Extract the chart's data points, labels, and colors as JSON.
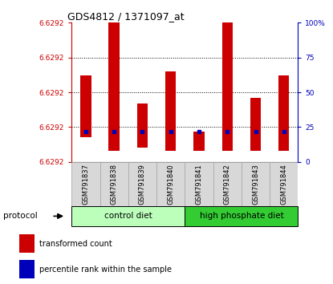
{
  "title": "GDS4812 / 1371097_at",
  "samples": [
    "GSM791837",
    "GSM791838",
    "GSM791839",
    "GSM791840",
    "GSM791841",
    "GSM791842",
    "GSM791843",
    "GSM791844"
  ],
  "bar_tops_pct": [
    62,
    100,
    42,
    65,
    22,
    100,
    46,
    62
  ],
  "bar_bottoms_pct": [
    18,
    8,
    10,
    8,
    8,
    8,
    8,
    8
  ],
  "percentile_pts": [
    22,
    22,
    22,
    22,
    22,
    22,
    22,
    22
  ],
  "yticks_right": [
    0,
    25,
    50,
    75,
    100
  ],
  "ytick_labels_left": [
    "6.6292",
    "6.6292",
    "6.6292",
    "6.6292",
    "6.6292"
  ],
  "hlines": [
    25,
    50,
    75
  ],
  "groups": [
    {
      "label": "control diet",
      "start": 0,
      "end": 4,
      "color": "#C8FFC8"
    },
    {
      "label": "high phosphate diet",
      "start": 4,
      "end": 8,
      "color": "#44DD44"
    }
  ],
  "bar_color": "#CC0000",
  "dot_color": "#0000BB",
  "bg_color": "#FFFFFF",
  "left_axis_color": "#CC0000",
  "right_axis_color": "#0000BB",
  "protocol_label": "protocol",
  "legend_items": [
    {
      "label": "transformed count",
      "color": "#CC0000",
      "marker": "s"
    },
    {
      "label": "percentile rank within the sample",
      "color": "#0000BB",
      "marker": "s"
    }
  ]
}
